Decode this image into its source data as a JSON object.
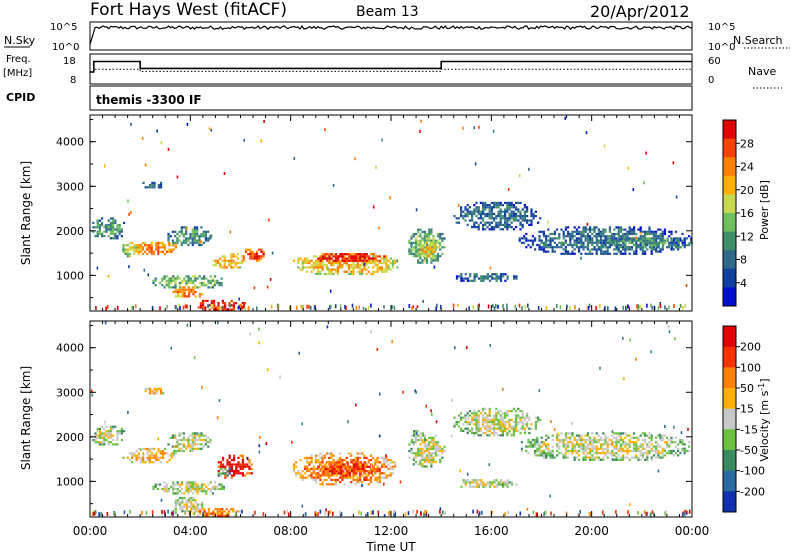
{
  "header": {
    "title": "Fort Hays West (fitACF)",
    "beam": "Beam 13",
    "date": "20/Apr/2012"
  },
  "chart_data": [
    {
      "type": "line",
      "left_label": "N.Sky",
      "left_ticks": [
        "10^5",
        "10^0"
      ],
      "right_label": "N.Search",
      "right_ticks": [
        "10^5",
        "10^0"
      ],
      "x": [
        0,
        0.2,
        24
      ],
      "values": [
        0.2,
        0.8,
        0.8
      ]
    },
    {
      "type": "line",
      "left_label_line1": "Freq.",
      "left_label_line2": "[MHz]",
      "left_ticks": [
        "18",
        "8"
      ],
      "right_label": "Nave",
      "right_ticks": [
        "60",
        "0"
      ],
      "series": [
        {
          "style": "solid",
          "x": [
            0,
            0.15,
            0.15,
            2.0,
            2.0,
            14.0,
            14.0,
            24
          ],
          "values": [
            12,
            12,
            15.5,
            15.5,
            13.2,
            13.2,
            15.5,
            15.5
          ]
        },
        {
          "style": "dotted",
          "x": [
            0.2,
            2.0,
            2.0,
            14.0,
            14.0,
            24
          ],
          "values": [
            12.9,
            12.9,
            12.2,
            12.2,
            12.9,
            12.9
          ]
        }
      ]
    },
    {
      "type": "label_strip",
      "left_label": "CPID",
      "text": "themis -3300 IF"
    },
    {
      "type": "heatmap",
      "quantity": "power",
      "ylabel": "Slant Range [km]",
      "yticks": [
        1000,
        2000,
        3000,
        4000
      ],
      "ylim": [
        200,
        4600
      ],
      "colorbar_label": "Power [dB]",
      "colorbar_ticks": [
        "28",
        "24",
        "20",
        "16",
        "12",
        "8",
        "4"
      ],
      "colors": [
        "#0010d0",
        "#1040a0",
        "#2f6a8a",
        "#3f8f6a",
        "#6fbf5f",
        "#c7d94f",
        "#ffb000",
        "#ff8000",
        "#ff4000",
        "#e00000"
      ],
      "blobs": [
        {
          "t0": 0,
          "t1": 1.4,
          "r0": 1800,
          "r1": 2350,
          "level": 3
        },
        {
          "t0": 1.2,
          "t1": 2.1,
          "r0": 1400,
          "r1": 1800,
          "level": 5
        },
        {
          "t0": 1.8,
          "t1": 3.5,
          "r0": 1450,
          "r1": 1800,
          "level": 7
        },
        {
          "t0": 3.0,
          "t1": 4.8,
          "r0": 1650,
          "r1": 2150,
          "level": 3
        },
        {
          "t0": 2.0,
          "t1": 3.0,
          "r0": 2950,
          "r1": 3150,
          "level": 2
        },
        {
          "t0": 2.4,
          "t1": 5.4,
          "r0": 700,
          "r1": 1050,
          "level": 4
        },
        {
          "t0": 3.2,
          "t1": 4.5,
          "r0": 500,
          "r1": 800,
          "level": 7
        },
        {
          "t0": 4.2,
          "t1": 6.2,
          "r0": 200,
          "r1": 500,
          "level": 9
        },
        {
          "t0": 4.8,
          "t1": 6.2,
          "r0": 1150,
          "r1": 1550,
          "level": 6
        },
        {
          "t0": 6.0,
          "t1": 7.0,
          "r0": 1300,
          "r1": 1650,
          "level": 8
        },
        {
          "t0": 8.0,
          "t1": 12.3,
          "r0": 1000,
          "r1": 1550,
          "level": 6
        },
        {
          "t0": 8.8,
          "t1": 11.8,
          "r0": 1300,
          "r1": 1550,
          "level": 9
        },
        {
          "t0": 12.6,
          "t1": 14.2,
          "r0": 1250,
          "r1": 2100,
          "level": 4
        },
        {
          "t0": 13.0,
          "t1": 14.0,
          "r0": 1400,
          "r1": 1800,
          "level": 6
        },
        {
          "t0": 14.4,
          "t1": 18.0,
          "r0": 2000,
          "r1": 2700,
          "level": 2
        },
        {
          "t0": 14.5,
          "t1": 17.0,
          "r0": 850,
          "r1": 1100,
          "level": 2
        },
        {
          "t0": 17.0,
          "t1": 24.0,
          "r0": 1450,
          "r1": 2150,
          "level": 2
        },
        {
          "t0": 20.0,
          "t1": 24.0,
          "r0": 1600,
          "r1": 1900,
          "level": 3
        }
      ]
    },
    {
      "type": "heatmap",
      "quantity": "velocity",
      "xlabel": "Time UT",
      "xticks": [
        "00:00",
        "04:00",
        "08:00",
        "12:00",
        "16:00",
        "20:00",
        "00:00"
      ],
      "xlim": [
        0,
        24
      ],
      "ylabel": "Slant Range [km]",
      "yticks": [
        1000,
        2000,
        3000,
        4000
      ],
      "ylim": [
        200,
        4600
      ],
      "colorbar_label": "Velocity [m s",
      "colorbar_unit_sup": "-1",
      "colorbar_label_end": "]",
      "colorbar_ticks": [
        "200",
        "100",
        "50",
        "15",
        "-15",
        "-50",
        "-100",
        "-200"
      ],
      "colors": [
        "#1030b0",
        "#2a6aa0",
        "#3a8a60",
        "#6ac040",
        "#c8c8c8",
        "#ffb000",
        "#ff8000",
        "#ff3000",
        "#e00000"
      ],
      "blobs": [
        {
          "t0": 0,
          "t1": 1.4,
          "r0": 1800,
          "r1": 2300,
          "level": 4
        },
        {
          "t0": 1.2,
          "t1": 3.5,
          "r0": 1400,
          "r1": 1800,
          "level": 5
        },
        {
          "t0": 3.0,
          "t1": 4.8,
          "r0": 1650,
          "r1": 2150,
          "level": 4
        },
        {
          "t0": 2.0,
          "t1": 3.0,
          "r0": 2950,
          "r1": 3150,
          "level": 5
        },
        {
          "t0": 2.4,
          "t1": 5.4,
          "r0": 700,
          "r1": 1050,
          "level": 4
        },
        {
          "t0": 3.2,
          "t1": 4.5,
          "r0": 300,
          "r1": 700,
          "level": 4
        },
        {
          "t0": 4.0,
          "t1": 6.0,
          "r0": 200,
          "r1": 450,
          "level": 6
        },
        {
          "t0": 5.0,
          "t1": 6.5,
          "r0": 1050,
          "r1": 1650,
          "level": 8
        },
        {
          "t0": 5.0,
          "t1": 5.6,
          "r0": 1100,
          "r1": 1350,
          "level": 3
        },
        {
          "t0": 8.0,
          "t1": 12.3,
          "r0": 900,
          "r1": 1700,
          "level": 6
        },
        {
          "t0": 9.0,
          "t1": 11.5,
          "r0": 1100,
          "r1": 1500,
          "level": 7
        },
        {
          "t0": 12.6,
          "t1": 14.2,
          "r0": 1300,
          "r1": 2100,
          "level": 4
        },
        {
          "t0": 12.7,
          "t1": 13.4,
          "r0": 1900,
          "r1": 2200,
          "level": 3
        },
        {
          "t0": 14.4,
          "t1": 18.0,
          "r0": 2000,
          "r1": 2700,
          "level": 4
        },
        {
          "t0": 14.5,
          "t1": 17.0,
          "r0": 850,
          "r1": 1100,
          "level": 4
        },
        {
          "t0": 17.0,
          "t1": 24.0,
          "r0": 1450,
          "r1": 2150,
          "level": 4
        }
      ]
    }
  ]
}
